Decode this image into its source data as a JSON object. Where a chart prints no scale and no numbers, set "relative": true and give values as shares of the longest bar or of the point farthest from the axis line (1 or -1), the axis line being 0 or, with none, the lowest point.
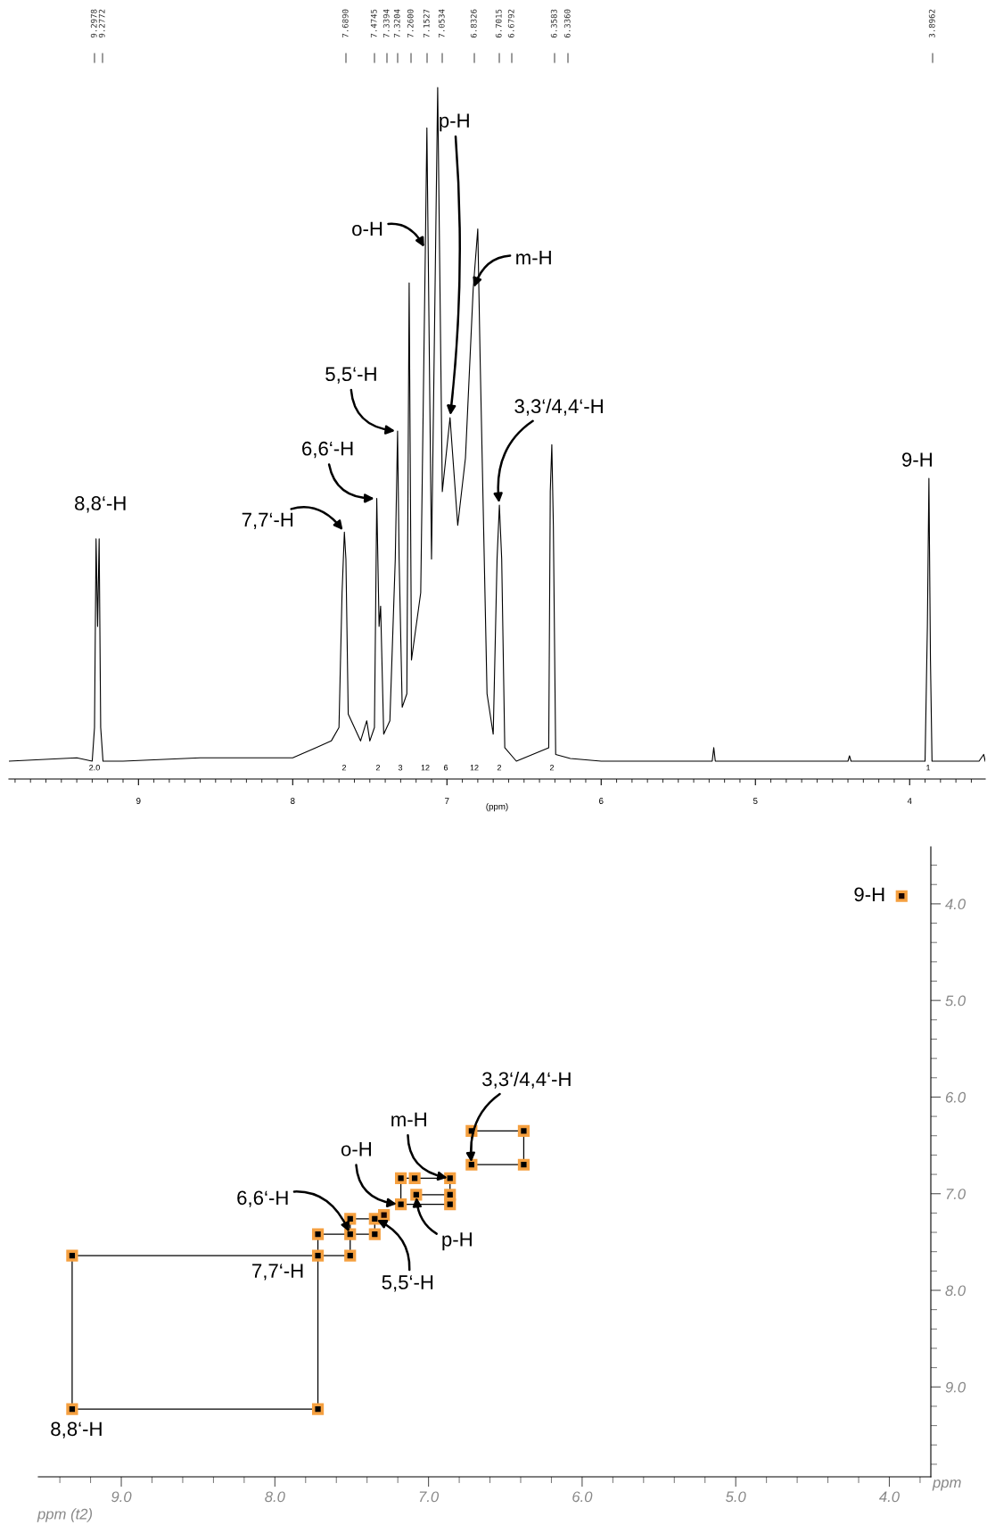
{
  "chart_data": [
    {
      "type": "line",
      "relative": true,
      "xlabel": "(ppm)",
      "xlim": [
        9.84,
        3.51
      ],
      "xticks": [
        9,
        8,
        7,
        6,
        5,
        4
      ],
      "series": [
        {
          "color": "#000000",
          "x": [
            9.84,
            9.4,
            9.3,
            9.285,
            9.275,
            9.265,
            9.255,
            9.245,
            9.23,
            9.1,
            8.6,
            8.0,
            7.85,
            7.75,
            7.7,
            7.68,
            7.665,
            7.655,
            7.64,
            7.56,
            7.52,
            7.5,
            7.47,
            7.455,
            7.44,
            7.43,
            7.41,
            7.37,
            7.335,
            7.32,
            7.31,
            7.29,
            7.26,
            7.245,
            7.23,
            7.17,
            7.14,
            7.13,
            7.1,
            7.06,
            7.03,
            6.98,
            6.93,
            6.88,
            6.83,
            6.8,
            6.785,
            6.74,
            6.7,
            6.675,
            6.66,
            6.645,
            6.625,
            6.55,
            6.34,
            6.33,
            6.32,
            6.31,
            6.295,
            6.2,
            6.0,
            5.28,
            5.27,
            5.26,
            4.4,
            4.39,
            4.38,
            3.9,
            3.885,
            3.875,
            3.865,
            3.855,
            3.55,
            3.52,
            3.51
          ],
          "values": [
            0.0,
            0.005,
            0.0,
            0.05,
            0.33,
            0.2,
            0.33,
            0.05,
            0.0,
            0.0,
            0.005,
            0.005,
            0.02,
            0.03,
            0.05,
            0.25,
            0.34,
            0.3,
            0.07,
            0.03,
            0.06,
            0.03,
            0.05,
            0.39,
            0.2,
            0.23,
            0.04,
            0.06,
            0.3,
            0.49,
            0.3,
            0.08,
            0.1,
            0.71,
            0.15,
            0.25,
            0.76,
            0.94,
            0.3,
            1.0,
            0.4,
            0.51,
            0.35,
            0.45,
            0.7,
            0.79,
            0.6,
            0.1,
            0.04,
            0.3,
            0.38,
            0.3,
            0.02,
            0.0,
            0.02,
            0.4,
            0.47,
            0.35,
            0.01,
            0.004,
            0.0,
            0.0,
            0.02,
            0.0,
            0.0,
            0.008,
            0.0,
            0.0,
            0.2,
            0.42,
            0.15,
            0.0,
            0.0,
            0.01,
            0.0
          ]
        }
      ],
      "annotations": [
        "9.2978",
        "9.2772",
        "7.6890",
        "7.4745",
        "7.3394",
        "7.3204",
        "7.2600",
        "7.1527",
        "7.0534",
        "6.8326",
        "6.7015",
        "6.6792",
        "6.3583",
        "6.3360",
        "3.8962",
        {
          "text": "8,8‘-H",
          "x": 9.275,
          "y": 0.33
        },
        {
          "text": "7,7‘-H",
          "x": 7.665,
          "y": 0.34
        },
        {
          "text": "6,6‘-H",
          "x": 7.455,
          "y": 0.39
        },
        {
          "text": "5,5‘-H",
          "x": 7.32,
          "y": 0.49
        },
        {
          "text": "o-H",
          "x": 7.14,
          "y": 0.76
        },
        {
          "text": "p-H",
          "x": 6.98,
          "y": 0.51
        },
        {
          "text": "m-H",
          "x": 6.83,
          "y": 0.7
        },
        {
          "text": "3,3‘/4,4‘-H",
          "x": 6.66,
          "y": 0.38
        },
        {
          "text": "9-H",
          "x": 3.875,
          "y": 0.42
        },
        "2.0",
        "2",
        "2",
        "3",
        "12",
        "6",
        "12",
        "2",
        "2",
        "1"
      ]
    },
    {
      "type": "scatter",
      "xlabel": "ppm (t2)",
      "ylabel": "ppm",
      "xlim": [
        9.54,
        3.73
      ],
      "ylim": [
        9.93,
        3.41
      ],
      "marker": "square",
      "xticks": [
        {
          "value": 9,
          "label": "9.0"
        },
        {
          "value": 8,
          "label": "8.0"
        },
        {
          "value": 7,
          "label": "7.0"
        },
        {
          "value": 6,
          "label": "6.0"
        },
        {
          "value": 5,
          "label": "5.0"
        },
        {
          "value": 4,
          "label": "4.0"
        }
      ],
      "yticks": [
        {
          "value": 4,
          "label": "4.0"
        },
        {
          "value": 5,
          "label": "5.0"
        },
        {
          "value": 6,
          "label": "6.0"
        },
        {
          "value": 7,
          "label": "7.0"
        },
        {
          "value": 8,
          "label": "8.0"
        },
        {
          "value": 9,
          "label": "9.0"
        }
      ],
      "series": [
        {
          "type": "line",
          "color": "#000000",
          "x": [
            9.32,
            7.72
          ],
          "values": [
            9.23,
            9.23
          ]
        },
        {
          "type": "line",
          "color": "#000000",
          "x": [
            9.32,
            7.72,
            7.51
          ],
          "values": [
            7.64,
            7.64,
            7.64
          ]
        },
        {
          "type": "line",
          "color": "#000000",
          "x": [
            7.72,
            7.51,
            7.35
          ],
          "values": [
            7.42,
            7.42,
            7.42
          ]
        },
        {
          "type": "line",
          "color": "#000000",
          "x": [
            7.51,
            7.35
          ],
          "values": [
            7.26,
            7.26
          ]
        },
        {
          "type": "line",
          "color": "#000000",
          "x": [
            7.18,
            6.86
          ],
          "values": [
            7.11,
            7.11
          ]
        },
        {
          "type": "line",
          "color": "#000000",
          "x": [
            7.08,
            6.86
          ],
          "values": [
            7.01,
            7.01
          ]
        },
        {
          "type": "line",
          "color": "#000000",
          "x": [
            7.18,
            7.09,
            6.86
          ],
          "values": [
            6.84,
            6.84,
            6.84
          ]
        },
        {
          "type": "line",
          "color": "#000000",
          "x": [
            6.72,
            6.38
          ],
          "values": [
            6.7,
            6.7
          ]
        },
        {
          "type": "line",
          "color": "#000000",
          "x": [
            6.72,
            6.38
          ],
          "values": [
            6.35,
            6.35
          ]
        },
        {
          "color": "#1a0500",
          "x": [
            7.29,
            3.92
          ],
          "values": [
            7.22,
            3.92
          ]
        }
      ],
      "annotations": [
        {
          "text": "9-H",
          "x": 3.92,
          "y": 3.92
        },
        {
          "text": "3,3‘/4,4‘-H",
          "x": 6.72,
          "y": 6.7
        },
        {
          "text": "m-H",
          "x": 6.86,
          "y": 6.84
        },
        {
          "text": "o-H",
          "x": 7.19,
          "y": 7.11
        },
        {
          "text": "6,6‘-H",
          "x": 7.51,
          "y": 7.42
        },
        {
          "text": "7,7‘-H",
          "x": 7.72,
          "y": 7.64
        },
        {
          "text": "5,5‘-H",
          "x": 7.35,
          "y": 7.26
        },
        {
          "text": "p-H",
          "x": 7.08,
          "y": 7.01
        },
        {
          "text": "8,8‘-H",
          "x": 9.32,
          "y": 9.23
        }
      ]
    }
  ]
}
